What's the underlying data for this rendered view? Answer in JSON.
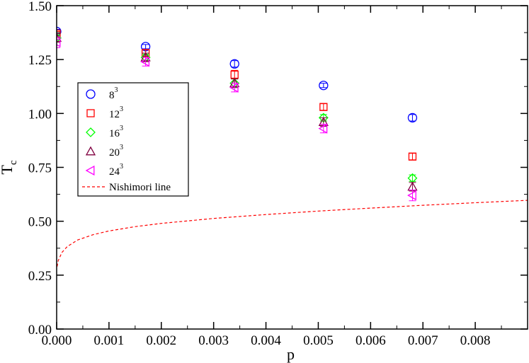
{
  "chart_data": {
    "type": "scatter",
    "xlabel": "p",
    "ylabel": {
      "main": "T",
      "sub": "c"
    },
    "xlim": [
      0,
      0.009
    ],
    "ylim": [
      0,
      1.5
    ],
    "x_ticks": [
      "0.000",
      "0.001",
      "0.002",
      "0.003",
      "0.004",
      "0.005",
      "0.006",
      "0.007",
      "0.008"
    ],
    "y_ticks": [
      "0.00",
      "0.25",
      "0.50",
      "0.75",
      "1.00",
      "1.25",
      "1.50"
    ],
    "x_tick_values": [
      0,
      0.001,
      0.002,
      0.003,
      0.004,
      0.005,
      0.006,
      0.007,
      0.008
    ],
    "y_tick_values": [
      0,
      0.25,
      0.5,
      0.75,
      1.0,
      1.25,
      1.5
    ],
    "grid": false,
    "legend_position": "left",
    "series": [
      {
        "name": "8",
        "sup": "3",
        "marker": "circle",
        "color": "#0000ff",
        "x": [
          0.0,
          0.0017,
          0.0034,
          0.0051,
          0.0068
        ],
        "y": [
          1.38,
          1.31,
          1.23,
          1.13,
          0.98
        ],
        "err": [
          0.01,
          0.01,
          0.015,
          0.01,
          0.015
        ]
      },
      {
        "name": "12",
        "sup": "3",
        "marker": "square",
        "color": "#ff0000",
        "x": [
          0.0,
          0.0017,
          0.0034,
          0.0051,
          0.0068
        ],
        "y": [
          1.37,
          1.28,
          1.18,
          1.03,
          0.8
        ],
        "err": [
          0.01,
          0.015,
          0.02,
          0.015,
          0.015
        ]
      },
      {
        "name": "16",
        "sup": "3",
        "marker": "diamond",
        "color": "#00ff00",
        "x": [
          0.0,
          0.0017,
          0.0034,
          0.0051,
          0.0068
        ],
        "y": [
          1.35,
          1.26,
          1.14,
          0.98,
          0.7
        ],
        "err": [
          0.015,
          0.015,
          0.02,
          0.015,
          0.015
        ]
      },
      {
        "name": "20",
        "sup": "3",
        "marker": "triangle-up",
        "color": "#800040",
        "x": [
          0.0,
          0.0017,
          0.0034,
          0.0051,
          0.0068
        ],
        "y": [
          1.35,
          1.26,
          1.14,
          0.96,
          0.66
        ],
        "err": [
          0.02,
          0.02,
          0.02,
          0.02,
          0.02
        ]
      },
      {
        "name": "24",
        "sup": "3",
        "marker": "triangle-left",
        "color": "#ff00ff",
        "x": [
          0.0,
          0.0017,
          0.0034,
          0.0051,
          0.0068
        ],
        "y": [
          1.33,
          1.24,
          1.12,
          0.93,
          0.62
        ],
        "err": [
          0.025,
          0.02,
          0.02,
          0.02,
          0.025
        ]
      },
      {
        "name": "Nishimori line",
        "marker": "dashed-line",
        "color": "#ff0000",
        "x": [
          1e-05,
          3e-05,
          0.0001,
          0.0002,
          0.0004,
          0.0007,
          0.001,
          0.0015,
          0.002,
          0.003,
          0.004,
          0.005,
          0.006,
          0.007,
          0.008,
          0.009
        ],
        "y": [
          0.29,
          0.317,
          0.355,
          0.382,
          0.413,
          0.438,
          0.455,
          0.475,
          0.49,
          0.513,
          0.531,
          0.547,
          0.561,
          0.574,
          0.586,
          0.597
        ]
      }
    ]
  }
}
